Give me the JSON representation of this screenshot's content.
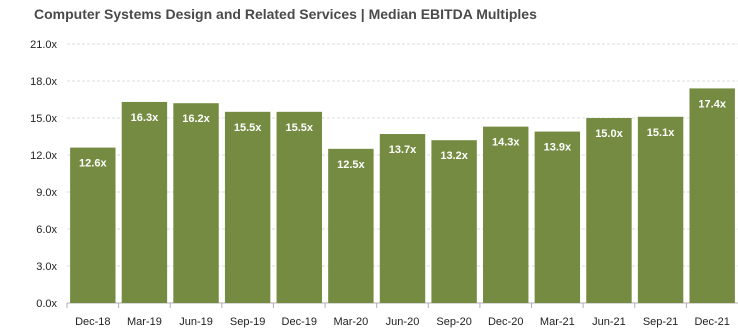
{
  "chart_data": {
    "type": "bar",
    "title": "Computer Systems Design and Related Services | Median EBITDA Multiples",
    "xlabel": "",
    "ylabel": "",
    "categories": [
      "Dec-18",
      "Mar-19",
      "Jun-19",
      "Sep-19",
      "Dec-19",
      "Mar-20",
      "Jun-20",
      "Sep-20",
      "Dec-20",
      "Mar-21",
      "Jun-21",
      "Sep-21",
      "Dec-21"
    ],
    "values": [
      12.6,
      16.3,
      16.2,
      15.5,
      15.5,
      12.5,
      13.7,
      13.2,
      14.3,
      13.9,
      15.0,
      15.1,
      17.4
    ],
    "data_labels": [
      "12.6x",
      "16.3x",
      "16.2x",
      "15.5x",
      "15.5x",
      "12.5x",
      "13.7x",
      "13.2x",
      "14.3x",
      "13.9x",
      "15.0x",
      "15.1x",
      "17.4x"
    ],
    "ylim": [
      0,
      21
    ],
    "yticks": [
      0,
      3,
      6,
      9,
      12,
      15,
      18,
      21
    ],
    "ytick_labels": [
      "0.0x",
      "3.0x",
      "6.0x",
      "9.0x",
      "12.0x",
      "15.0x",
      "18.0x",
      "21.0x"
    ],
    "grid": true,
    "legend": "none",
    "colors": {
      "bar": "#758b42",
      "grid": "#dcdcdc",
      "axis": "#b0b0b0"
    }
  }
}
